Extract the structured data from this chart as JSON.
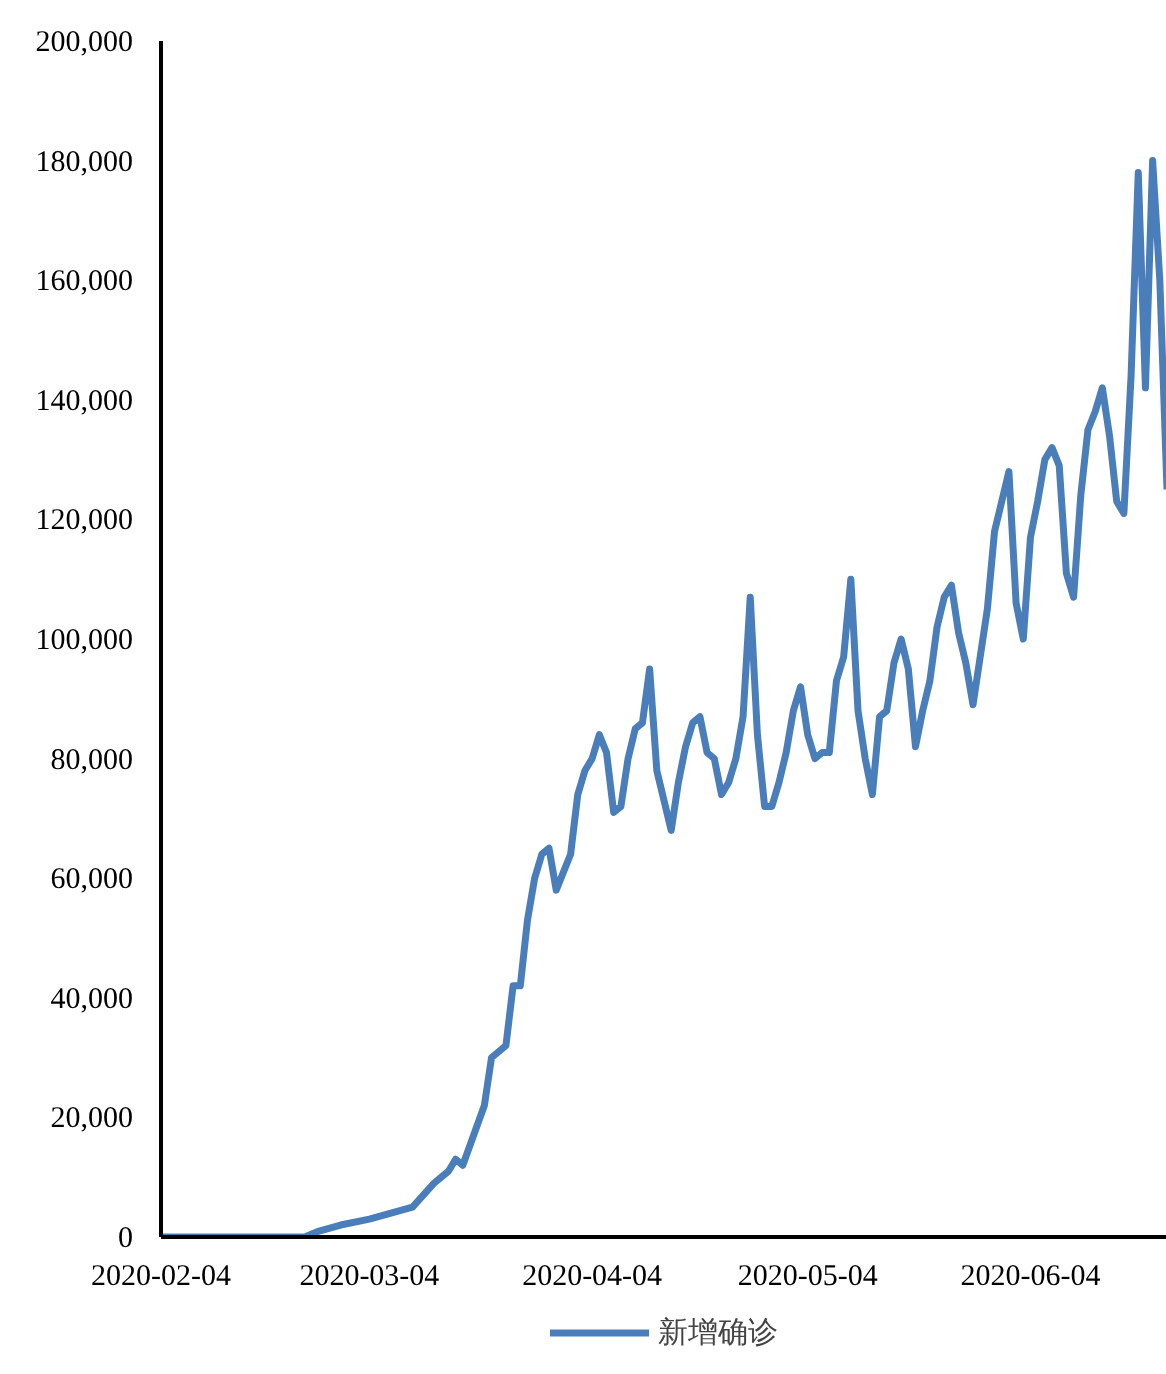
{
  "chart_data": {
    "type": "line",
    "x": [
      "2020-02-04",
      "2020-02-09",
      "2020-02-14",
      "2020-02-19",
      "2020-02-24",
      "2020-02-26",
      "2020-02-29",
      "2020-03-04",
      "2020-03-07",
      "2020-03-10",
      "2020-03-13",
      "2020-03-15",
      "2020-03-16",
      "2020-03-17",
      "2020-03-20",
      "2020-03-21",
      "2020-03-22",
      "2020-03-23",
      "2020-03-24",
      "2020-03-25",
      "2020-03-26",
      "2020-03-27",
      "2020-03-28",
      "2020-03-29",
      "2020-03-30",
      "2020-04-01",
      "2020-04-02",
      "2020-04-03",
      "2020-04-04",
      "2020-04-05",
      "2020-04-06",
      "2020-04-07",
      "2020-04-08",
      "2020-04-09",
      "2020-04-10",
      "2020-04-11",
      "2020-04-12",
      "2020-04-13",
      "2020-04-14",
      "2020-04-15",
      "2020-04-16",
      "2020-04-17",
      "2020-04-18",
      "2020-04-19",
      "2020-04-20",
      "2020-04-21",
      "2020-04-22",
      "2020-04-23",
      "2020-04-24",
      "2020-04-25",
      "2020-04-26",
      "2020-04-27",
      "2020-04-28",
      "2020-04-29",
      "2020-04-30",
      "2020-05-01",
      "2020-05-02",
      "2020-05-03",
      "2020-05-04",
      "2020-05-05",
      "2020-05-06",
      "2020-05-07",
      "2020-05-08",
      "2020-05-09",
      "2020-05-10",
      "2020-05-11",
      "2020-05-12",
      "2020-05-13",
      "2020-05-14",
      "2020-05-15",
      "2020-05-16",
      "2020-05-17",
      "2020-05-18",
      "2020-05-19",
      "2020-05-20",
      "2020-05-21",
      "2020-05-22",
      "2020-05-23",
      "2020-05-24",
      "2020-05-25",
      "2020-05-26",
      "2020-05-27",
      "2020-05-28",
      "2020-05-29",
      "2020-05-30",
      "2020-05-31",
      "2020-06-01",
      "2020-06-02",
      "2020-06-03",
      "2020-06-04",
      "2020-06-05",
      "2020-06-06",
      "2020-06-07",
      "2020-06-08",
      "2020-06-09",
      "2020-06-10",
      "2020-06-11",
      "2020-06-12",
      "2020-06-13",
      "2020-06-14",
      "2020-06-15",
      "2020-06-16",
      "2020-06-17",
      "2020-06-18",
      "2020-06-19",
      "2020-06-20",
      "2020-06-21",
      "2020-06-22",
      "2020-06-23"
    ],
    "series": [
      {
        "name": "新增确诊",
        "color": "#4a7ebb",
        "values": [
          0,
          0,
          0,
          0,
          0,
          1000,
          2000,
          3000,
          4000,
          5000,
          9000,
          11000,
          13000,
          12000,
          22000,
          30000,
          31000,
          32000,
          42000,
          42000,
          53000,
          60000,
          64000,
          65000,
          58000,
          64000,
          74000,
          78000,
          80000,
          84000,
          81000,
          71000,
          72000,
          80000,
          85000,
          86000,
          95000,
          78000,
          73000,
          68000,
          76000,
          82000,
          86000,
          87000,
          81000,
          80000,
          74000,
          76000,
          80000,
          87000,
          107000,
          84000,
          72000,
          72000,
          76000,
          81000,
          88000,
          92000,
          84000,
          80000,
          81000,
          81000,
          93000,
          97000,
          110000,
          88000,
          80000,
          74000,
          87000,
          88000,
          96000,
          100000,
          95000,
          82000,
          88000,
          93000,
          102000,
          107000,
          109000,
          101000,
          96000,
          89000,
          97000,
          105000,
          118000,
          123000,
          128000,
          106000,
          100000,
          117000,
          123000,
          130000,
          132000,
          129000,
          111000,
          107000,
          124000,
          135000,
          138000,
          142000,
          134000,
          123000,
          121000,
          144000,
          178000,
          142000,
          180000,
          160000,
          125000
        ]
      }
    ],
    "xlim": [
      "2020-02-04",
      "2020-06-23"
    ],
    "xticks": [
      "2020-02-04",
      "2020-03-04",
      "2020-04-04",
      "2020-05-04",
      "2020-06-04"
    ],
    "ylim": [
      0,
      200000
    ],
    "yticks": [
      0,
      {
        "value": 20000,
        "label": "20,000"
      },
      {
        "value": 40000,
        "label": "40,000"
      },
      {
        "value": 60000,
        "label": "60,000"
      },
      {
        "value": 80000,
        "label": "80,000"
      },
      {
        "value": 100000,
        "label": "100,000"
      },
      {
        "value": 120000,
        "label": "120,000"
      },
      {
        "value": 140000,
        "label": "140,000"
      },
      {
        "value": 160000,
        "label": "160,000"
      },
      {
        "value": 180000,
        "label": "180,000"
      },
      {
        "value": 200000,
        "label": "200,000"
      }
    ],
    "grid": false,
    "legend": "bottom",
    "marker": "none",
    "line_style": "solid"
  }
}
